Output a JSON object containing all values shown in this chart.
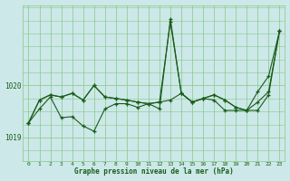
{
  "xlabel": "Graphe pression niveau de la mer (hPa)",
  "bg_color": "#cce8e8",
  "line_color": "#1a5c1a",
  "grid_color": "#88c888",
  "text_color": "#1a5c1a",
  "ylim": [
    1018.55,
    1021.55
  ],
  "yticks": [
    1019.0,
    1020.0
  ],
  "hours": [
    0,
    1,
    2,
    3,
    4,
    5,
    6,
    7,
    8,
    9,
    10,
    11,
    12,
    13,
    14,
    15,
    16,
    17,
    18,
    19,
    20,
    21,
    22,
    23
  ],
  "series1": [
    1019.28,
    1019.72,
    1019.82,
    1019.78,
    1019.85,
    1019.72,
    1020.0,
    1019.78,
    1019.75,
    1019.72,
    1019.68,
    1019.65,
    1019.68,
    1021.22,
    1019.85,
    1019.68,
    1019.75,
    1019.82,
    1019.72,
    1019.58,
    1019.52,
    1019.68,
    1019.88,
    1021.05
  ],
  "series2": [
    1019.28,
    1019.72,
    1019.82,
    1019.78,
    1019.85,
    1019.72,
    1020.0,
    1019.78,
    1019.75,
    1019.72,
    1019.68,
    1019.65,
    1019.68,
    1019.72,
    1019.85,
    1019.68,
    1019.75,
    1019.82,
    1019.72,
    1019.58,
    1019.52,
    1019.88,
    1020.18,
    1021.05
  ],
  "series3": [
    1019.28,
    1019.55,
    1019.78,
    1019.38,
    1019.4,
    1019.22,
    1019.12,
    1019.55,
    1019.65,
    1019.65,
    1019.58,
    1019.65,
    1019.55,
    1021.28,
    1019.85,
    1019.68,
    1019.75,
    1019.72,
    1019.52,
    1019.52,
    1019.52,
    1019.52,
    1019.82,
    1021.05
  ]
}
